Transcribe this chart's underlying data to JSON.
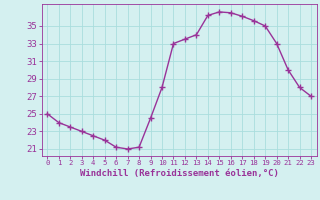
{
  "hours": [
    0,
    1,
    2,
    3,
    4,
    5,
    6,
    7,
    8,
    9,
    10,
    11,
    12,
    13,
    14,
    15,
    16,
    17,
    18,
    19,
    20,
    21,
    22,
    23
  ],
  "values": [
    25.0,
    24.0,
    23.5,
    23.0,
    22.5,
    22.0,
    21.2,
    21.0,
    21.2,
    24.5,
    28.0,
    33.0,
    33.5,
    34.0,
    36.2,
    36.6,
    36.5,
    36.1,
    35.6,
    35.0,
    33.0,
    30.0,
    28.0,
    27.0
  ],
  "line_color": "#993399",
  "marker": "+",
  "background_color": "#d4f0f0",
  "grid_color": "#aadddd",
  "ylabel_ticks": [
    21,
    23,
    25,
    27,
    29,
    31,
    33,
    35
  ],
  "ylim": [
    20.2,
    37.5
  ],
  "xlim": [
    -0.5,
    23.5
  ],
  "xlabel": "Windchill (Refroidissement éolien,°C)",
  "xlabel_color": "#993399",
  "tick_color": "#993399",
  "line_width": 1.0,
  "marker_size": 4,
  "marker_edge_width": 1.0,
  "ytick_fontsize": 6.5,
  "xtick_fontsize": 5.2,
  "xlabel_fontsize": 6.5
}
